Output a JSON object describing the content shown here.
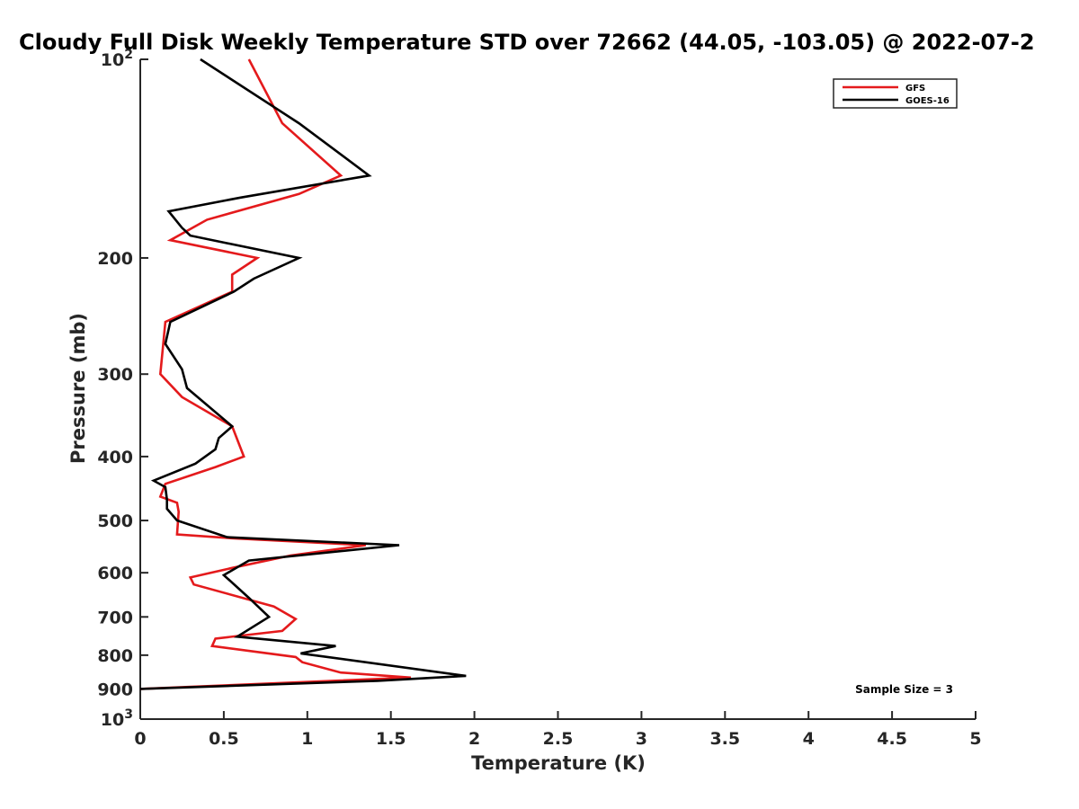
{
  "chart_data": {
    "type": "line",
    "title": "Cloudy Full Disk Weekly Temperature STD over 72662 (44.05, -103.05) @ 2022-07-2",
    "xlabel": "Temperature (K)",
    "ylabel": "Pressure (mb)",
    "xlim": [
      0,
      5
    ],
    "ylim": [
      1000,
      100
    ],
    "y_scale": "log",
    "y_reversed": true,
    "x_ticks": [
      {
        "value": 0,
        "label": "0"
      },
      {
        "value": 0.5,
        "label": "0.5"
      },
      {
        "value": 1,
        "label": "1"
      },
      {
        "value": 1.5,
        "label": "1.5"
      },
      {
        "value": 2,
        "label": "2"
      },
      {
        "value": 2.5,
        "label": "2.5"
      },
      {
        "value": 3,
        "label": "3"
      },
      {
        "value": 3.5,
        "label": "3.5"
      },
      {
        "value": 4,
        "label": "4"
      },
      {
        "value": 4.5,
        "label": "4.5"
      },
      {
        "value": 5,
        "label": "5"
      }
    ],
    "y_ticks": [
      {
        "value": 100,
        "base": "10",
        "exp": "2"
      },
      {
        "value": 200,
        "label": "200"
      },
      {
        "value": 300,
        "label": "300"
      },
      {
        "value": 400,
        "label": "400"
      },
      {
        "value": 500,
        "label": "500"
      },
      {
        "value": 600,
        "label": "600"
      },
      {
        "value": 700,
        "label": "700"
      },
      {
        "value": 800,
        "label": "800"
      },
      {
        "value": 900,
        "label": "900"
      },
      {
        "value": 1000,
        "base": "10",
        "exp": "3"
      }
    ],
    "grid": false,
    "legend_position": "top-right",
    "annotation": "Sample Size = 3",
    "series": [
      {
        "name": "GFS",
        "color": "#e41a1c",
        "points": [
          [
            0.65,
            100
          ],
          [
            0.85,
            125
          ],
          [
            1.2,
            150
          ],
          [
            0.95,
            160
          ],
          [
            0.4,
            175
          ],
          [
            0.18,
            188
          ],
          [
            0.7,
            200
          ],
          [
            0.55,
            212
          ],
          [
            0.55,
            225
          ],
          [
            0.15,
            250
          ],
          [
            0.12,
            300
          ],
          [
            0.25,
            325
          ],
          [
            0.55,
            360
          ],
          [
            0.62,
            400
          ],
          [
            0.45,
            415
          ],
          [
            0.15,
            440
          ],
          [
            0.12,
            460
          ],
          [
            0.22,
            470
          ],
          [
            0.23,
            485
          ],
          [
            0.22,
            525
          ],
          [
            0.55,
            532
          ],
          [
            1.35,
            545
          ],
          [
            0.9,
            565
          ],
          [
            0.55,
            590
          ],
          [
            0.3,
            610
          ],
          [
            0.32,
            625
          ],
          [
            0.8,
            675
          ],
          [
            0.93,
            705
          ],
          [
            0.85,
            735
          ],
          [
            0.45,
            755
          ],
          [
            0.43,
            775
          ],
          [
            0.93,
            805
          ],
          [
            0.97,
            820
          ],
          [
            1.2,
            850
          ],
          [
            1.62,
            865
          ],
          [
            0.0,
            900
          ]
        ]
      },
      {
        "name": "GOES-16",
        "color": "#000000",
        "points": [
          [
            0.36,
            100
          ],
          [
            0.95,
            125
          ],
          [
            1.37,
            150
          ],
          [
            0.6,
            162
          ],
          [
            0.17,
            170
          ],
          [
            0.25,
            180
          ],
          [
            0.3,
            185
          ],
          [
            0.95,
            200
          ],
          [
            0.68,
            215
          ],
          [
            0.56,
            225
          ],
          [
            0.18,
            250
          ],
          [
            0.15,
            270
          ],
          [
            0.25,
            295
          ],
          [
            0.28,
            315
          ],
          [
            0.55,
            360
          ],
          [
            0.47,
            375
          ],
          [
            0.45,
            390
          ],
          [
            0.33,
            410
          ],
          [
            0.08,
            435
          ],
          [
            0.15,
            445
          ],
          [
            0.16,
            465
          ],
          [
            0.16,
            480
          ],
          [
            0.22,
            500
          ],
          [
            0.52,
            530
          ],
          [
            1.55,
            545
          ],
          [
            0.65,
            575
          ],
          [
            0.5,
            605
          ],
          [
            0.65,
            655
          ],
          [
            0.77,
            700
          ],
          [
            0.58,
            750
          ],
          [
            1.17,
            775
          ],
          [
            0.96,
            795
          ],
          [
            1.95,
            860
          ],
          [
            1.42,
            875
          ],
          [
            0.0,
            900
          ]
        ]
      }
    ]
  }
}
